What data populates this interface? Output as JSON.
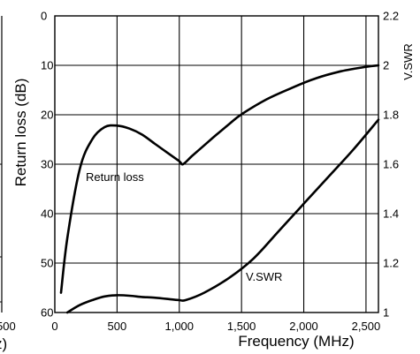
{
  "chart_data": {
    "type": "line",
    "xlabel": "Frequency (MHz)",
    "ylabel_left": "Return loss (dB)",
    "ylabel_right": "V.SWR",
    "x_ticks": [
      0,
      500,
      1000,
      1500,
      2000,
      2500
    ],
    "x_tick_labels": [
      "0",
      "500",
      "1,000",
      "1,500",
      "2,000",
      "2,500"
    ],
    "y_left_ticks": [
      0,
      10,
      20,
      30,
      40,
      50,
      60
    ],
    "y_left_tick_labels": [
      "0",
      "10",
      "20",
      "30",
      "40",
      "50",
      "60"
    ],
    "y_right_ticks": [
      1,
      1.2,
      1.4,
      1.6,
      1.8,
      2,
      2.2
    ],
    "y_right_tick_labels": [
      "1",
      "1.2",
      "1.4",
      "1.6",
      "1.8",
      "2",
      "2.2"
    ],
    "xlim": [
      0,
      2600
    ],
    "ylim_left": [
      60,
      0
    ],
    "ylim_right": [
      1,
      2.2
    ],
    "grid": true,
    "series": [
      {
        "name": "Return loss",
        "axis": "left",
        "x": [
          50,
          100,
          200,
          300,
          400,
          500,
          600,
          700,
          800,
          900,
          1000,
          1030,
          1100,
          1200,
          1300,
          1400,
          1500,
          1700,
          1900,
          2100,
          2300,
          2500,
          2600
        ],
        "values": [
          56,
          45,
          31,
          25,
          22.5,
          22.2,
          22.8,
          24,
          25.8,
          27.6,
          29.4,
          30,
          28.4,
          26.2,
          24,
          21.9,
          19.9,
          16.9,
          14.6,
          12.6,
          11.2,
          10.3,
          10
        ]
      },
      {
        "name": "V.SWR",
        "axis": "right",
        "x": [
          100,
          200,
          300,
          400,
          500,
          600,
          700,
          800,
          900,
          1000,
          1050,
          1200,
          1400,
          1600,
          1800,
          2000,
          2200,
          2400,
          2600
        ],
        "values": [
          1.0,
          1.03,
          1.05,
          1.065,
          1.07,
          1.068,
          1.063,
          1.06,
          1.055,
          1.05,
          1.05,
          1.08,
          1.14,
          1.22,
          1.33,
          1.44,
          1.55,
          1.66,
          1.78
        ]
      }
    ]
  },
  "clipped_left_panel": {
    "x_tick_label": "500",
    "x_title_fragment": "z)"
  }
}
